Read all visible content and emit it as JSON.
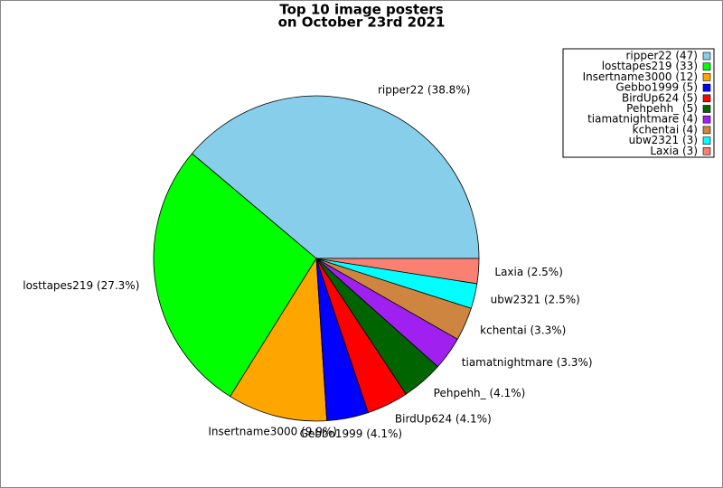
{
  "chart_data": {
    "type": "pie",
    "title": "Top 10 image posters",
    "subtitle": "on October 23rd 2021",
    "categories": [
      "ripper22",
      "losttapes219",
      "Insertname3000",
      "Gebbo1999",
      "BirdUp624",
      "Pehpehh_",
      "tiamatnightmare",
      "kchentai",
      "ubw2321",
      "Laxia"
    ],
    "values": [
      47,
      33,
      12,
      5,
      5,
      5,
      4,
      4,
      3,
      3
    ],
    "slice_labels": [
      "ripper22 (38.8%)",
      "losttapes219 (27.3%)",
      "Insertname3000 (9.9%)",
      "Gebbo1999 (4.1%)",
      "BirdUp624 (4.1%)",
      "Pehpehh_ (4.1%)",
      "tiamatnightmare (3.3%)",
      "kchentai (3.3%)",
      "ubw2321 (2.5%)",
      "Laxia (2.5%)"
    ],
    "legend_labels": [
      "ripper22 (47)",
      "losttapes219 (33)",
      "Insertname3000 (12)",
      "Gebbo1999 (5)",
      "BirdUp624 (5)",
      "Pehpehh_ (5)",
      "tiamatnightmare (4)",
      "kchentai (4)",
      "ubw2321 (3)",
      "Laxia (3)"
    ],
    "colors": [
      "#87ceeb",
      "#00ff00",
      "#ffa500",
      "#0000ff",
      "#ff0000",
      "#006400",
      "#a020f0",
      "#cd853f",
      "#00ffff",
      "#fa8072"
    ],
    "legend": "upper right"
  }
}
